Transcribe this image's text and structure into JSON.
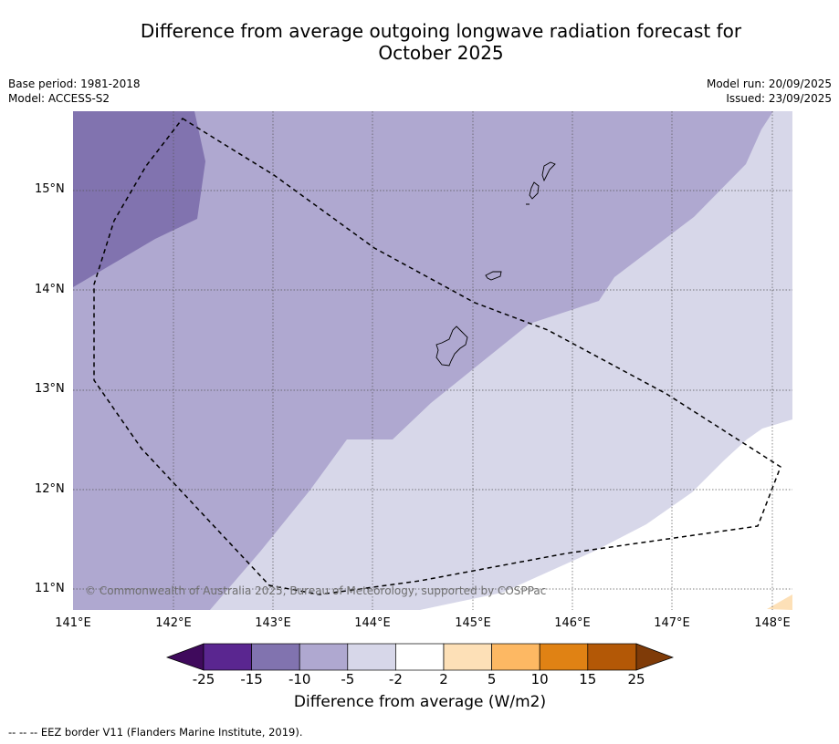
{
  "header": {
    "title_line1": "Difference from average outgoing longwave radiation forecast for",
    "title_line2": "October 2025",
    "base_period": "Base period: 1981-2018",
    "model": "Model: ACCESS-S2",
    "model_run": "Model run: 20/09/2025",
    "issued": "Issued: 23/09/2025"
  },
  "map": {
    "latitude_labels": [
      "15°N",
      "14°N",
      "13°N",
      "12°N",
      "11°N"
    ],
    "longitude_labels": [
      "141°E",
      "142°E",
      "143°E",
      "144°E",
      "145°E",
      "146°E",
      "147°E",
      "148°E"
    ],
    "copyright": "© Commonwealth of Australia 2025, Bureau of Meteorology, supported by COSPPac",
    "colors": {
      "band_minus15_minus10": "#8173af",
      "band_minus10_minus5": "#afa8d0",
      "band_minus5_minus2": "#d7d7e9",
      "band_minus2_2": "#ffffff",
      "band_2_5": "#fde0b7"
    }
  },
  "legend": {
    "ticks": [
      "-25",
      "-15",
      "-10",
      "-5",
      "-2",
      "2",
      "5",
      "10",
      "15",
      "25"
    ],
    "colors": [
      "#3f0a5c",
      "#5a2690",
      "#8173af",
      "#afa8d0",
      "#d7d7e9",
      "#ffffff",
      "#fde0b7",
      "#fdb863",
      "#e08214",
      "#b35806",
      "#7f3b08"
    ],
    "title": "Difference from average (W/m2)"
  },
  "footnote": "--  --  -- EEZ border V11 (Flanders Marine Institute, 2019)."
}
